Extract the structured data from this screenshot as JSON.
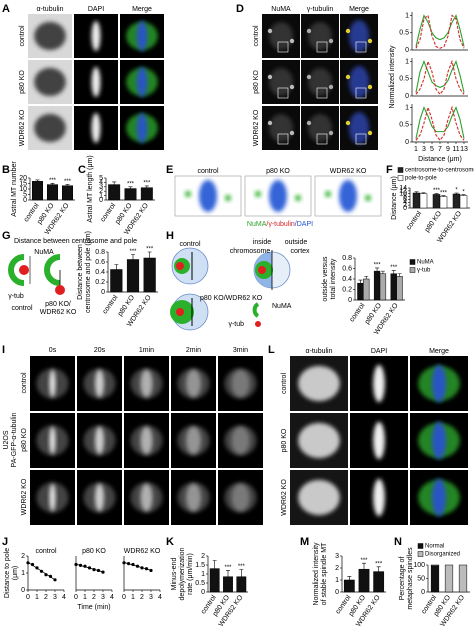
{
  "panel_labels": [
    "A",
    "B",
    "C",
    "D",
    "E",
    "F",
    "G",
    "H",
    "I",
    "J",
    "K",
    "L",
    "M",
    "N"
  ],
  "image_panels": {
    "A": {
      "columns": [
        "α-tubulin",
        "DAPI",
        "Merge"
      ],
      "rows": [
        "control",
        "p80 KO",
        "WDR62 KO"
      ]
    },
    "D": {
      "columns": [
        "NuMA",
        "γ-tubulin",
        "Merge"
      ],
      "rows": [
        "control",
        "p80 KO",
        "WDR62 KO"
      ]
    },
    "E": {
      "columns": [
        "control",
        "p80 KO",
        "WDR62 KO"
      ],
      "caption": [
        "NuMA",
        "/γ-tubulin",
        "/DAPI"
      ]
    },
    "I": {
      "columns": [
        "0s",
        "20s",
        "1min",
        "2min",
        "3min"
      ],
      "rows": [
        "control",
        "p80 KO",
        "WDR62 KO"
      ],
      "side_label": [
        "U2OS",
        "PA-GFP-α-tubulin"
      ]
    },
    "L": {
      "columns": [
        "α-tubulin",
        "DAPI",
        "Merge"
      ],
      "rows": [
        "control",
        "p80 KO",
        "WDR62 KO"
      ]
    }
  },
  "diagrams": {
    "G": {
      "title": "Distance between centrosome and pole",
      "numa": "NuMA",
      "gtub": "γ-tub",
      "left": "control",
      "right": [
        "p80 KO/",
        "WDR62 KO"
      ]
    },
    "H": {
      "control": "control",
      "inside": "inside",
      "outside": "outside",
      "chromosome": "chromosome",
      "cortex": "cortex",
      "ko": "p80 KO/WDR62 KO",
      "numa": "NuMA",
      "gtub": "γ-tub"
    }
  },
  "chart_data": [
    {
      "type": "bar",
      "y_label": [
        "Astral MT number"
      ],
      "categories": [
        "control",
        "p80 KO",
        "WDR62 KO"
      ],
      "values": [
        17,
        14,
        13
      ],
      "errors": [
        1.2,
        1.2,
        1.0
      ],
      "significance": [
        null,
        "***",
        "***"
      ],
      "color": "#111111",
      "ylim": [
        0,
        20
      ],
      "yticks": [
        0,
        5,
        10,
        15,
        20
      ]
    },
    {
      "type": "bar",
      "y_label": [
        "Astral MT length (μm)"
      ],
      "categories": [
        "control",
        "p80 KO",
        "WDR62 KO"
      ],
      "values": [
        3.5,
        2.6,
        2.8
      ],
      "errors": [
        0.6,
        0.4,
        0.4
      ],
      "significance": [
        null,
        "***",
        "***"
      ],
      "color": "#111111",
      "ylim": [
        0,
        5
      ],
      "yticks": [
        0,
        1,
        2,
        3,
        4,
        5
      ]
    },
    {
      "type": "line",
      "x": [
        1,
        2,
        3,
        4,
        5,
        6,
        7,
        8,
        9,
        10,
        11,
        12,
        13
      ],
      "xlim": [
        0,
        14
      ],
      "ylim": [
        0,
        1.1
      ],
      "yticks": [
        0,
        0.5,
        1
      ],
      "series": [
        {
          "color": "#2ca02c",
          "values": [
            0.1,
            0.6,
            1,
            0.8,
            0.5,
            0.35,
            0.3,
            0.35,
            0.5,
            0.8,
            1,
            0.6,
            0.1
          ]
        },
        {
          "color": "#d62728",
          "values": [
            0.05,
            0.3,
            0.9,
            1,
            0.4,
            0.1,
            0.05,
            0.1,
            0.4,
            1,
            0.9,
            0.3,
            0.05
          ]
        }
      ]
    },
    {
      "type": "line",
      "y_label": [
        "Normalized intensity"
      ],
      "x": [
        1,
        2,
        3,
        4,
        5,
        6,
        7,
        8,
        9,
        10,
        11,
        12,
        13
      ],
      "xlim": [
        0,
        14
      ],
      "ylim": [
        0,
        1.1
      ],
      "yticks": [
        0,
        0.5,
        1
      ],
      "series": [
        {
          "color": "#2ca02c",
          "values": [
            0.1,
            0.7,
            1,
            0.7,
            0.4,
            0.3,
            0.25,
            0.3,
            0.45,
            0.75,
            1,
            0.6,
            0.1
          ]
        },
        {
          "color": "#d62728",
          "values": [
            0.05,
            0.2,
            0.5,
            1,
            0.7,
            0.2,
            0.05,
            0.2,
            0.7,
            1,
            0.5,
            0.2,
            0.05
          ]
        }
      ]
    },
    {
      "type": "line",
      "x_label": "Distance (μm)",
      "x": [
        1,
        2,
        3,
        4,
        5,
        6,
        7,
        8,
        9,
        10,
        11,
        12,
        13
      ],
      "xlim": [
        0,
        14
      ],
      "xticks": [
        1,
        3,
        5,
        7,
        9,
        11,
        13
      ],
      "ylim": [
        0,
        1.1
      ],
      "yticks": [
        0,
        0.5,
        1
      ],
      "series": [
        {
          "color": "#2ca02c",
          "values": [
            0.1,
            0.65,
            1,
            0.75,
            0.45,
            0.3,
            0.3,
            0.3,
            0.45,
            0.75,
            1,
            0.65,
            0.1
          ]
        },
        {
          "color": "#d62728",
          "values": [
            0.05,
            0.2,
            0.55,
            1,
            0.65,
            0.2,
            0.05,
            0.2,
            0.65,
            1,
            0.55,
            0.2,
            0.05
          ]
        }
      ]
    },
    {
      "type": "bar",
      "y_label": [
        "Distance (μm)"
      ],
      "categories": [
        "control",
        "p80 KO",
        "WDR62 KO"
      ],
      "ylim": [
        0,
        14
      ],
      "yticks": [
        0,
        2,
        4,
        6,
        8,
        10,
        12,
        14
      ],
      "legend": "top",
      "series": [
        {
          "name": "centrosome-to-centrosome",
          "color": "#222222",
          "values": [
            10.5,
            9.5,
            9.8
          ],
          "errors": [
            0.8,
            0.6,
            0.7
          ],
          "significance": [
            null,
            "***",
            "*"
          ]
        },
        {
          "name": "pole-to-pole",
          "color": "#ffffff",
          "values": [
            10.0,
            8.0,
            8.7
          ],
          "errors": [
            0.6,
            0.6,
            0.6
          ],
          "significance": [
            null,
            "***",
            "*"
          ]
        }
      ]
    },
    {
      "type": "bar",
      "y_label": [
        "Distance between",
        "centrosome and pole (μm)"
      ],
      "categories": [
        "control",
        "p80 KO",
        "WDR62 KO"
      ],
      "values": [
        0.45,
        0.65,
        0.68
      ],
      "errors": [
        0.1,
        0.1,
        0.12
      ],
      "significance": [
        null,
        "***",
        "***"
      ],
      "color": "#111111",
      "ylim": [
        0,
        0.8
      ],
      "yticks": [
        0,
        0.2,
        0.4,
        0.6,
        0.8
      ]
    },
    {
      "type": "bar",
      "y_label": [
        "outside versus",
        "total intensity"
      ],
      "categories": [
        "control",
        "p80 KO",
        "WDR62 KO"
      ],
      "ylim": [
        0,
        0.8
      ],
      "yticks": [
        0,
        0.2,
        0.4,
        0.6,
        0.8
      ],
      "legend": "right",
      "series": [
        {
          "name": "NuMA",
          "color": "#111111",
          "values": [
            0.32,
            0.55,
            0.5
          ],
          "errors": [
            0.06,
            0.06,
            0.06
          ],
          "significance": [
            null,
            "***",
            "***"
          ]
        },
        {
          "name": "γ-tub",
          "color": "#aaaaaa",
          "values": [
            0.4,
            0.5,
            0.45
          ],
          "errors": [
            0.05,
            0.05,
            0.05
          ]
        }
      ]
    },
    {
      "type": "scatter",
      "title": "control",
      "y_label": [
        "Distance to pole",
        "(μm)"
      ],
      "x": [
        0,
        0.5,
        1,
        1.5,
        2,
        2.5,
        3
      ],
      "values": [
        1.6,
        1.5,
        1.3,
        1.1,
        0.9,
        0.8,
        0.6
      ],
      "xlim": [
        0,
        4
      ],
      "xticks": [
        0,
        1,
        2,
        3,
        4
      ],
      "ylim": [
        0,
        2
      ],
      "yticks": [
        0,
        1,
        2
      ]
    },
    {
      "type": "scatter",
      "title": "p80 KO",
      "x_label": "Time (min)",
      "x": [
        0,
        0.5,
        1,
        1.5,
        2,
        2.5,
        3
      ],
      "values": [
        1.5,
        1.45,
        1.4,
        1.3,
        1.2,
        1.15,
        1.05
      ],
      "xlim": [
        0,
        4
      ],
      "xticks": [
        0,
        1,
        2,
        3,
        4
      ],
      "ylim": [
        0,
        2
      ]
    },
    {
      "type": "scatter",
      "title": "WDR62 KO",
      "x": [
        0,
        0.5,
        1,
        1.5,
        2,
        2.5,
        3
      ],
      "values": [
        1.6,
        1.55,
        1.5,
        1.4,
        1.3,
        1.25,
        1.15
      ],
      "xlim": [
        0,
        4
      ],
      "xticks": [
        0,
        1,
        2,
        3,
        4
      ],
      "ylim": [
        0,
        2
      ]
    },
    {
      "type": "bar",
      "y_label": [
        "Minus-end",
        "depolymerization",
        "rate (μm/min)"
      ],
      "categories": [
        "control",
        "p80 KO",
        "WDR62 KO"
      ],
      "values": [
        1.3,
        0.85,
        0.85
      ],
      "errors": [
        0.45,
        0.35,
        0.4
      ],
      "significance": [
        null,
        "***",
        "***"
      ],
      "color": "#111111",
      "ylim": [
        0,
        2
      ],
      "yticks": [
        0,
        0.5,
        1,
        1.5,
        2
      ]
    },
    {
      "type": "bar",
      "y_label": [
        "Normalized intensity",
        "of stable spindle MT"
      ],
      "categories": [
        "control",
        "p80 KO",
        "WDR62 KO"
      ],
      "values": [
        1,
        1.9,
        1.7
      ],
      "errors": [
        0.3,
        0.5,
        0.4
      ],
      "significance": [
        null,
        "***",
        "***"
      ],
      "color": "#111111",
      "ylim": [
        0,
        3
      ],
      "yticks": [
        0,
        1,
        2,
        3
      ]
    },
    {
      "type": "bar",
      "stacked": true,
      "y_label": [
        "Percentage of",
        "metaphase spindles"
      ],
      "categories": [
        "control",
        "p80 KO",
        "WDR62 KO"
      ],
      "ylim": [
        0,
        100
      ],
      "yticks": [
        0,
        50,
        100
      ],
      "legend": "top",
      "series": [
        {
          "name": "Normal",
          "color": "#111111",
          "values": [
            97,
            0,
            0
          ]
        },
        {
          "name": "Disorganized",
          "color": "#bbbbbb",
          "values": [
            3,
            100,
            100
          ]
        }
      ]
    }
  ]
}
